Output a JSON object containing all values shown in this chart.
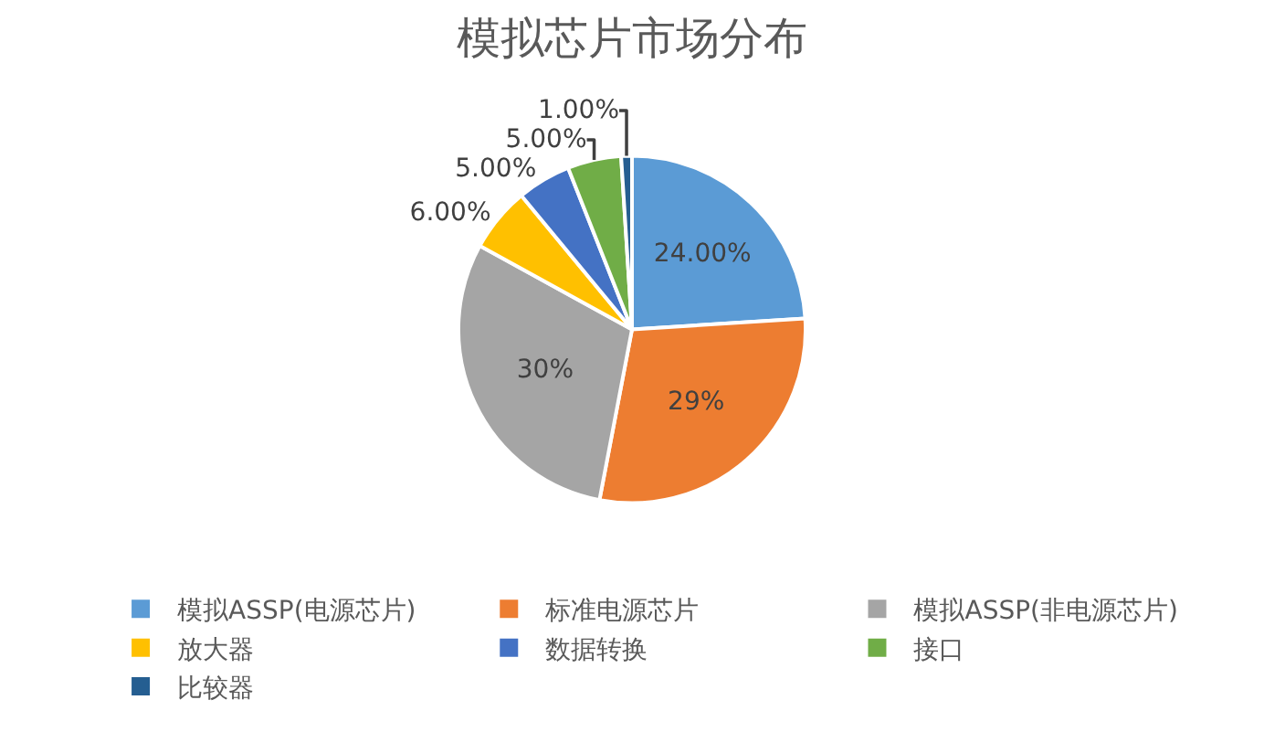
{
  "chart_data": {
    "type": "pie",
    "title": "模拟芯片市场分布",
    "categories": [
      "模拟ASSP(电源芯片)",
      "标准电源芯片",
      "模拟ASSP(非电源芯片)",
      "放大器",
      "数据转换",
      "接口",
      "比较器"
    ],
    "values": [
      24,
      29,
      30,
      6,
      5,
      5,
      1
    ],
    "value_labels": [
      "24.00%",
      "29%",
      "30%",
      "6.00%",
      "5.00%",
      "5.00%",
      "1.00%"
    ],
    "colors": [
      "#5b9bd5",
      "#ed7d31",
      "#a5a5a5",
      "#ffc000",
      "#4472c4",
      "#70ad47",
      "#255e91"
    ],
    "legend": "bottom"
  }
}
